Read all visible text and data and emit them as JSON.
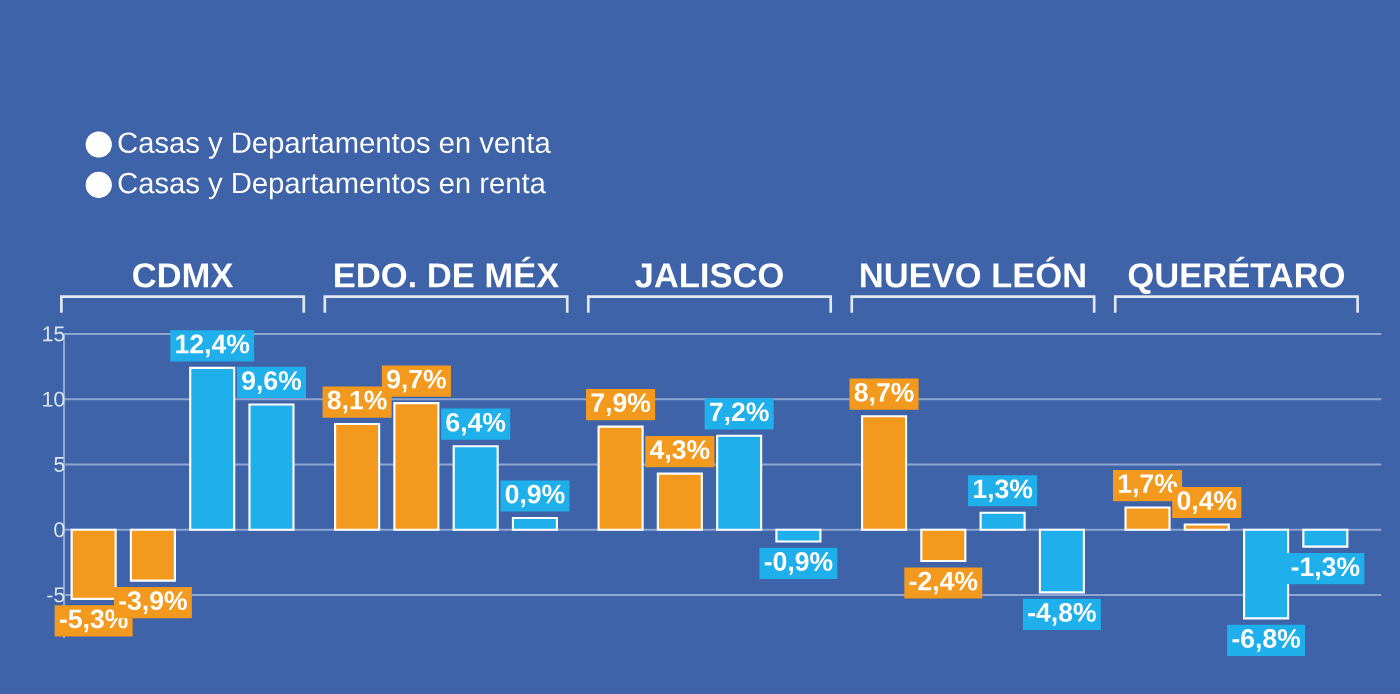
{
  "chart_data": {
    "type": "bar",
    "categories": [
      "CDMX",
      "EDO. DE MÉX",
      "JALISCO",
      "NUEVO LEÓN",
      "QUERÉTARO"
    ],
    "series": [
      {
        "name": "Casas y Departamentos en venta",
        "color": "#f39a1e",
        "values": [
          -5.3,
          8.1,
          7.9,
          8.7,
          1.7
        ],
        "value_labels": [
          "-5,3%",
          "8,1%",
          "7,9%",
          "8,7%",
          "1,7%"
        ]
      },
      {
        "color": "#f39a1e",
        "values": [
          -3.9,
          9.7,
          4.3,
          -2.4,
          0.4
        ],
        "value_labels": [
          "-3,9%",
          "9,7%",
          "4,3%",
          "-2,4%",
          "0,4%"
        ]
      },
      {
        "name": "Casas y Departamentos en renta",
        "color": "#1fb0ec",
        "values": [
          12.4,
          6.4,
          7.2,
          1.3,
          -6.8
        ],
        "value_labels": [
          "12,4%",
          "6,4%",
          "7,2%",
          "1,3%",
          "-6,8%"
        ]
      },
      {
        "color": "#1fb0ec",
        "values": [
          9.6,
          0.9,
          -0.9,
          -4.8,
          -1.3
        ],
        "value_labels": [
          "9,6%",
          "0,9%",
          "-0,9%",
          "-4,8%",
          "-1,3%"
        ]
      }
    ],
    "ylim": [
      -8.3,
      15
    ],
    "yticks": [
      -5,
      0,
      5,
      10,
      15
    ],
    "grid": "y",
    "legend": "top left"
  }
}
